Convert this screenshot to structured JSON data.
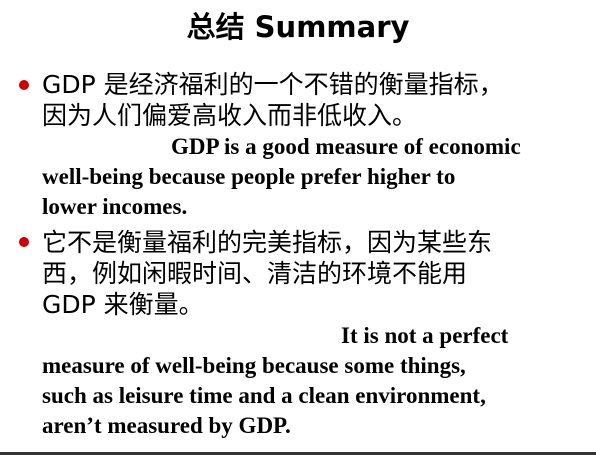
{
  "slide": {
    "title": "总结  Summary",
    "bullet_color": "#cc0000",
    "bullets": [
      {
        "chinese_lines": [
          "GDP 是经济福利的一个不错的衡量指标，",
          "因为人们偏爱高收入而非低收入。"
        ],
        "english_lines": [
          "GDP is a good measure of economic",
          "well-being because people prefer higher to",
          "lower incomes."
        ]
      },
      {
        "chinese_lines": [
          "它不是衡量福利的完美指标，因为某些东",
          "西，例如闲暇时间、清洁的环境不能用",
          "GDP 来衡量。"
        ],
        "english_lines": [
          "It is not a perfect",
          "measure of well-being because some things,",
          "such as leisure time and a clean environment,",
          "aren’t measured by GDP."
        ]
      }
    ]
  }
}
